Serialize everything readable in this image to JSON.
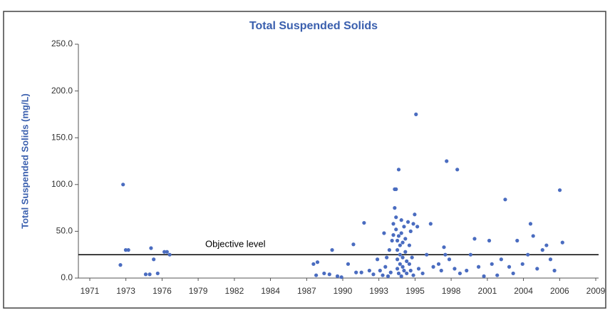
{
  "chart_data": {
    "type": "scatter",
    "title": "Total Suspended Solids",
    "y_label": "Total Suspended Solids (mg/L)",
    "color": "#4a6cc0",
    "objective": {
      "label": "Objective level",
      "value": 25,
      "color": "#000000"
    },
    "x": [
      1973.3,
      1973.5,
      1973.7,
      1973.9,
      1975.2,
      1975.5,
      1975.6,
      1975.8,
      1976.1,
      1976.6,
      1976.8,
      1977.0,
      1987.8,
      1988.1,
      1988.0,
      1988.6,
      1989.0,
      1989.2,
      1989.6,
      1989.9,
      1990.4,
      1990.8,
      1991.0,
      1991.4,
      1991.6,
      1992.0,
      1992.3,
      1992.6,
      1992.8,
      1993.0,
      1993.1,
      1993.2,
      1993.3,
      1993.4,
      1993.5,
      1993.6,
      1993.7,
      1993.8,
      1993.8,
      1993.9,
      1993.9,
      1994.0,
      1994.0,
      1994.0,
      1994.1,
      1994.1,
      1994.1,
      1994.1,
      1994.2,
      1994.2,
      1994.2,
      1994.3,
      1994.3,
      1994.3,
      1994.4,
      1994.4,
      1994.4,
      1994.5,
      1994.5,
      1994.5,
      1994.6,
      1994.6,
      1994.7,
      1994.7,
      1994.8,
      1994.8,
      1994.9,
      1995.0,
      1995.0,
      1995.1,
      1995.1,
      1995.2,
      1995.3,
      1995.3,
      1995.4,
      1995.5,
      1995.6,
      1995.7,
      1996.0,
      1996.3,
      1996.6,
      1996.8,
      1997.2,
      1997.4,
      1997.6,
      1997.7,
      1997.8,
      1998.0,
      1998.4,
      1998.6,
      1998.8,
      1999.3,
      1999.6,
      1999.9,
      2000.2,
      2000.6,
      2001.0,
      2001.2,
      2001.6,
      2001.9,
      2002.2,
      2002.5,
      2002.8,
      2003.1,
      2003.5,
      2003.9,
      2004.1,
      2004.3,
      2004.6,
      2005.0,
      2005.3,
      2005.6,
      2005.9,
      2006.3,
      2006.5
    ],
    "values": [
      14,
      100,
      30,
      30,
      4,
      4,
      32,
      20,
      5,
      28,
      28,
      25,
      15,
      17,
      3,
      5,
      4,
      30,
      2,
      1,
      15,
      36,
      6,
      6,
      59,
      8,
      4,
      20,
      8,
      3,
      48,
      12,
      22,
      2,
      30,
      6,
      40,
      46,
      58,
      75,
      95,
      95,
      65,
      52,
      40,
      30,
      20,
      10,
      5,
      116,
      45,
      35,
      25,
      15,
      2,
      62,
      48,
      38,
      22,
      12,
      8,
      55,
      42,
      28,
      18,
      5,
      60,
      35,
      15,
      50,
      8,
      22,
      58,
      3,
      68,
      175,
      55,
      10,
      5,
      25,
      58,
      12,
      15,
      8,
      33,
      25,
      125,
      20,
      10,
      116,
      5,
      8,
      25,
      42,
      12,
      2,
      40,
      15,
      3,
      20,
      84,
      12,
      5,
      40,
      15,
      25,
      58,
      45,
      10,
      30,
      35,
      20,
      8,
      94,
      38
    ],
    "xlim": [
      1971,
      2009
    ],
    "xticks": [
      1971,
      {
        "value": 1973.71,
        "label": "1973"
      },
      {
        "value": 1976.43,
        "label": "1976"
      },
      {
        "value": 1979.14,
        "label": "1979"
      },
      {
        "value": 1981.86,
        "label": "1982"
      },
      {
        "value": 1984.57,
        "label": "1984"
      },
      {
        "value": 1987.29,
        "label": "1987"
      },
      1990,
      {
        "value": 1992.71,
        "label": "1993"
      },
      {
        "value": 1995.43,
        "label": "1995"
      },
      {
        "value": 1998.14,
        "label": "1998"
      },
      {
        "value": 2000.86,
        "label": "2001"
      },
      {
        "value": 2003.57,
        "label": "2004"
      },
      {
        "value": 2006.29,
        "label": "2006"
      },
      2009
    ],
    "ylim": [
      0,
      250
    ],
    "yticks": [
      {
        "value": 0,
        "label": "0.0"
      },
      {
        "value": 50,
        "label": "50.0"
      },
      {
        "value": 100,
        "label": "100.0"
      },
      {
        "value": 150,
        "label": "150.0"
      },
      {
        "value": 200,
        "label": "200.0"
      },
      {
        "value": 250,
        "label": "250.0"
      }
    ],
    "grid": false
  }
}
